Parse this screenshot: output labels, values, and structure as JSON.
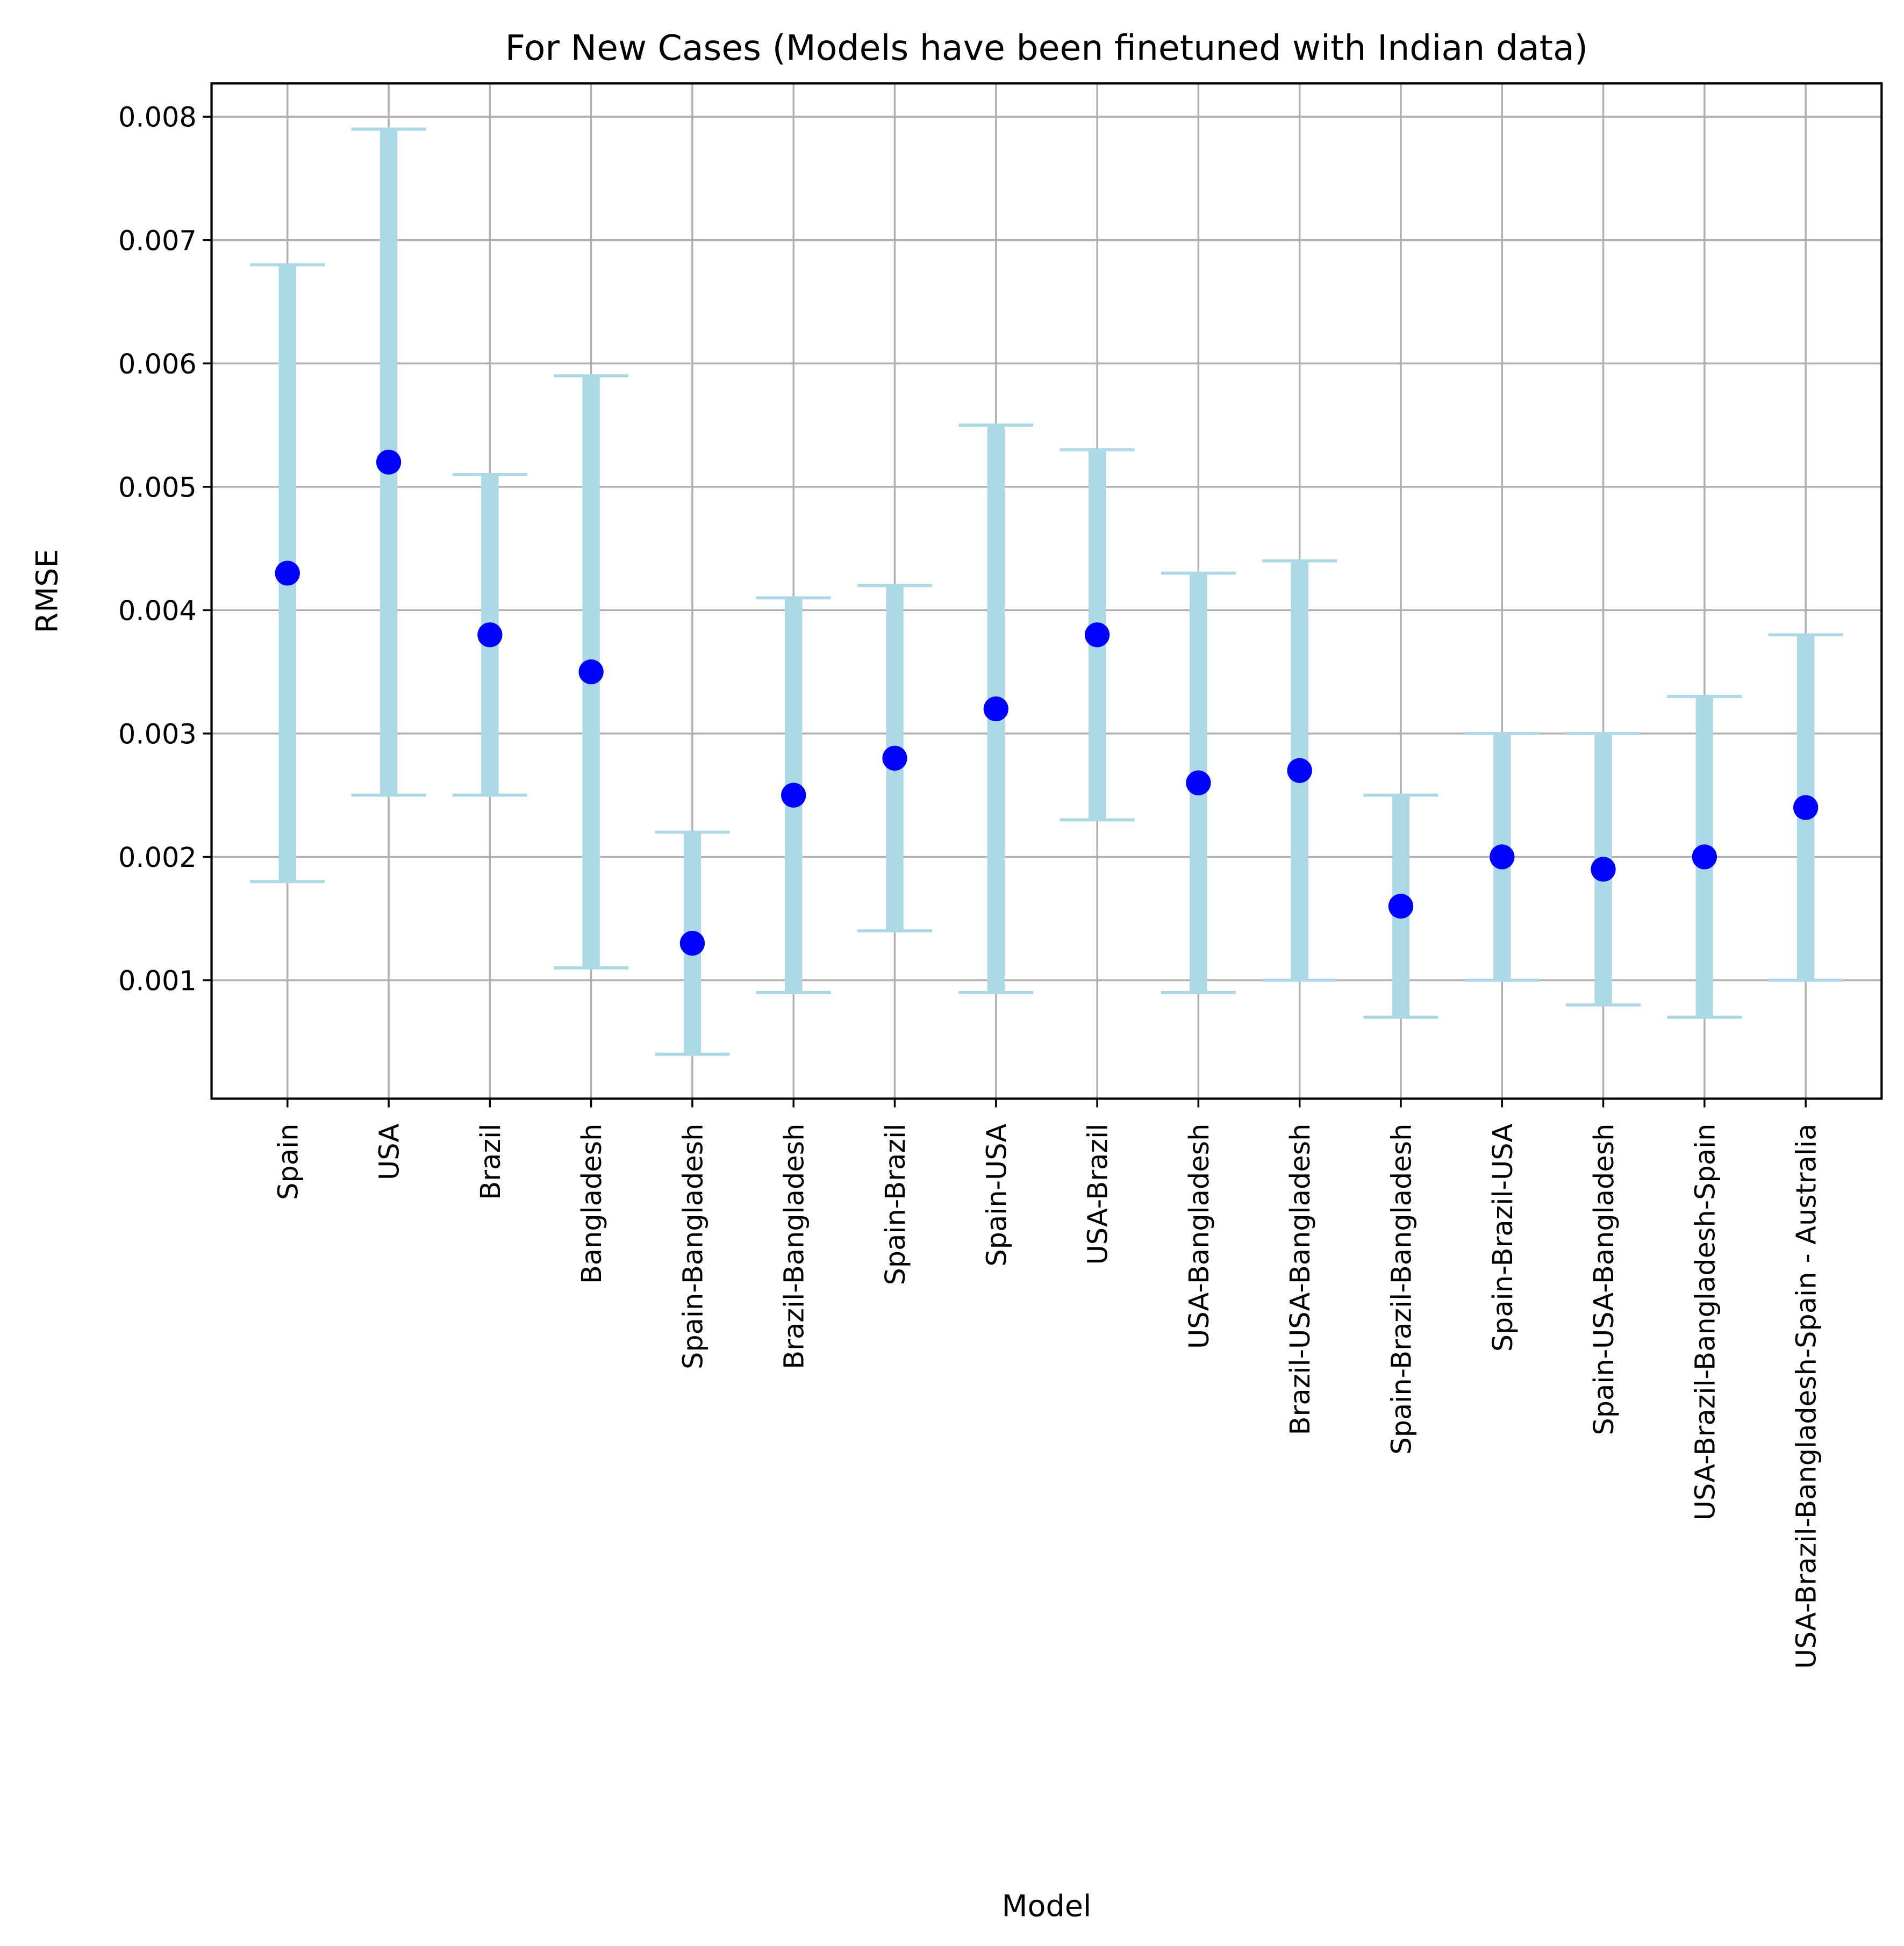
{
  "chart_data": {
    "type": "errorbar",
    "title": "For New Cases (Models have been finetuned with Indian data)",
    "x_label": "Model",
    "y_label": "RMSE",
    "categories": [
      "Spain",
      "USA",
      "Brazil",
      "Bangladesh",
      "Spain-Bangladesh",
      "Brazil-Bangladesh",
      "Spain-Brazil",
      "Spain-USA",
      "USA-Brazil",
      "USA-Bangladesh",
      "Brazil-USA-Bangladesh",
      "Spain-Brazil-Bangladesh",
      "Spain-Brazil-USA",
      "Spain-USA-Bangladesh",
      "USA-Brazil-Bangladesh-Spain",
      "USA-Brazil-Bangladesh-Spain - Australia"
    ],
    "values": [
      0.0043,
      0.0052,
      0.0038,
      0.0035,
      0.0013,
      0.0025,
      0.0028,
      0.0032,
      0.0038,
      0.0026,
      0.0027,
      0.0016,
      0.002,
      0.0019,
      0.002,
      0.0024
    ],
    "errors": [
      0.0025,
      0.0027,
      0.0013,
      0.0024,
      0.0009,
      0.0016,
      0.0014,
      0.0023,
      0.0015,
      0.0017,
      0.0017,
      0.0009,
      0.001,
      0.0011,
      0.0013,
      0.0014
    ],
    "color": "#0000ff",
    "error_color": "#add8e6",
    "ylim": [
      4e-05,
      0.00827
    ],
    "yticks": [
      0.001,
      0.002,
      0.003,
      0.004,
      0.005,
      0.006,
      0.007,
      0.008
    ],
    "grid": true
  }
}
